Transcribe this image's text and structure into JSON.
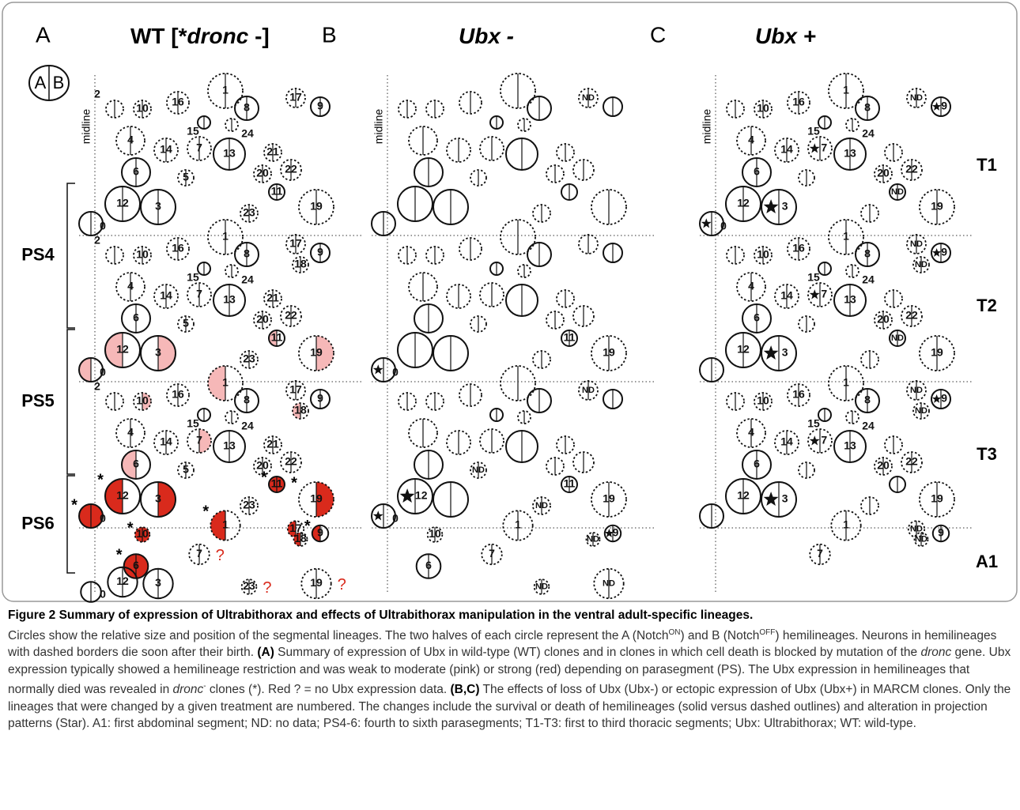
{
  "legend": {
    "a": "A",
    "b": "B"
  },
  "midline": "midline",
  "dronc_mark": "*",
  "missing_mark": "?",
  "panels": [
    {
      "letter": "A",
      "title_parts": [
        "WT  [*",
        "dronc",
        " -]"
      ],
      "regions": [
        "PS4",
        "PS5",
        "PS6"
      ],
      "blocks": [
        [
          "2",
          "10",
          "16",
          "1",
          "8",
          "17",
          "9",
          "15",
          "24",
          "4",
          "14",
          "7",
          "13",
          "21",
          "20",
          "22",
          "6",
          "5",
          "11",
          "12",
          "3",
          "23",
          "19",
          "0",
          null
        ],
        [
          "2",
          "10",
          "16",
          "1",
          "8",
          "17",
          "9",
          "15",
          "24",
          "4",
          "14",
          "7",
          "13",
          "21",
          "20",
          "22",
          "6",
          "5",
          "11",
          "12",
          "3",
          "23",
          "19",
          "0",
          "18"
        ],
        [
          "2",
          "10",
          "16",
          "1",
          "8",
          "17",
          "9",
          "15",
          "24",
          "4",
          "14",
          "7",
          "13",
          "21",
          "20",
          "22",
          "6",
          "5",
          "11",
          "12",
          "3",
          "23",
          "19",
          "0",
          "18"
        ],
        [
          null,
          "10",
          null,
          "1",
          null,
          "17",
          "9",
          null,
          null,
          null,
          null,
          "7",
          null,
          null,
          null,
          null,
          "6",
          null,
          null,
          "12",
          "3",
          "23",
          "19",
          "0",
          "18"
        ]
      ]
    },
    {
      "letter": "B",
      "title_parts": [
        "Ubx -"
      ],
      "regions": [],
      "blocks": [
        [
          null,
          null,
          null,
          null,
          null,
          "ND",
          null,
          null,
          null,
          null,
          null,
          null,
          null,
          null,
          null,
          null,
          null,
          null,
          null,
          null,
          null,
          null,
          null,
          null,
          null
        ],
        [
          null,
          null,
          null,
          null,
          null,
          null,
          null,
          null,
          null,
          null,
          null,
          null,
          null,
          null,
          null,
          null,
          null,
          null,
          "11",
          null,
          null,
          null,
          "19",
          "0",
          null
        ],
        [
          null,
          null,
          null,
          null,
          null,
          "ND",
          null,
          null,
          null,
          null,
          null,
          null,
          null,
          null,
          null,
          null,
          null,
          "ND",
          "11",
          "12",
          null,
          "ND",
          "19",
          "0",
          null
        ],
        [
          null,
          "10",
          null,
          "1",
          null,
          null,
          "9",
          null,
          null,
          null,
          null,
          "7",
          null,
          null,
          null,
          null,
          "6",
          null,
          null,
          null,
          null,
          "ND",
          "ND",
          null,
          "ND"
        ]
      ]
    },
    {
      "letter": "C",
      "title_parts": [
        "Ubx +"
      ],
      "regions": [
        "T1",
        "T2",
        "T3",
        "A1"
      ],
      "blocks": [
        [
          null,
          "10",
          "16",
          "1",
          "8",
          "ND",
          "9",
          "15",
          "24",
          "4",
          "14",
          "7",
          "13",
          null,
          "20",
          "22",
          "6",
          null,
          "ND",
          "12",
          "3",
          null,
          "19",
          "0",
          null
        ],
        [
          null,
          "10",
          "16",
          "1",
          "8",
          "ND",
          "9",
          "15",
          "24",
          "4",
          "14",
          "7",
          "13",
          null,
          "20",
          "22",
          "6",
          null,
          "ND",
          "12",
          "3",
          null,
          "19",
          null,
          "ND"
        ],
        [
          null,
          "10",
          "16",
          "1",
          "8",
          "ND",
          "9",
          "15",
          "24",
          "4",
          "14",
          "7",
          "13",
          null,
          "20",
          "22",
          "6",
          null,
          null,
          "12",
          "3",
          null,
          "19",
          null,
          "ND"
        ],
        [
          null,
          null,
          null,
          "1",
          null,
          "ND",
          "9",
          null,
          null,
          null,
          null,
          "7",
          null,
          null,
          null,
          null,
          null,
          null,
          null,
          null,
          null,
          null,
          null,
          null,
          "ND"
        ]
      ]
    }
  ],
  "caption": {
    "title": "Figure 2 Summary of expression of Ultrabithorax and effects of Ultrabithorax manipulation in the ventral adult-specific lineages.",
    "body": [
      "Circles show the relative size and position of the segmental lineages. The two halves of each circle represent the A (Notch",
      "ON",
      ") and B (Notch",
      "OFF",
      ") hemilineages. Neurons in hemilineages with dashed borders die soon after their birth. ",
      "(A)",
      " Summary of expression of Ubx in wild-type (WT) clones and in clones in which cell death is blocked by mutation of the ",
      "dronc",
      " gene. Ubx expression typically showed a hemilineage restriction and was weak to moderate (pink) or strong (red) depending on parasegment (PS). The Ubx expression in hemilineages that normally died was revealed in ",
      "dronc",
      "-",
      " clones (*). Red ? = no Ubx expression data. ",
      "(B,C)",
      " The effects of loss of Ubx (Ubx-) or ectopic expression of Ubx (Ubx+) in MARCM clones. Only the lineages that were changed by a given treatment are numbered. The changes include the survival or death of hemilineages (solid versus dashed outlines) and alteration in projection patterns (Star). A1: first abdominal segment; ND: no data; PS4-6: fourth to sixth parasegments; T1-T3: first to third thoracic segments; Ubx: Ultrabithorax; WT: wild-type."
    ]
  }
}
